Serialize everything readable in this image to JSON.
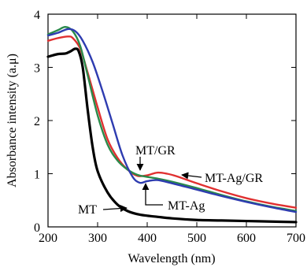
{
  "chart_data": {
    "type": "line",
    "xlabel": "Wavelength (nm)",
    "ylabel": "Absorbance intensity (a.μ)",
    "xlim": [
      200,
      700
    ],
    "ylim": [
      0,
      4
    ],
    "xticks": [
      200,
      300,
      400,
      500,
      600,
      700
    ],
    "yticks": [
      0,
      1,
      2,
      3,
      4
    ],
    "grid": false,
    "legend": "none (curves labelled by arrows)",
    "series": [
      {
        "name": "MT",
        "color": "#000000",
        "x": [
          200,
          220,
          235,
          245,
          255,
          262,
          270,
          280,
          290,
          300,
          320,
          340,
          360,
          380,
          400,
          420,
          450,
          500,
          550,
          600,
          650,
          700
        ],
        "y": [
          3.2,
          3.25,
          3.26,
          3.3,
          3.35,
          3.3,
          3.0,
          2.2,
          1.5,
          1.05,
          0.65,
          0.42,
          0.3,
          0.24,
          0.21,
          0.19,
          0.16,
          0.13,
          0.12,
          0.11,
          0.1,
          0.09
        ]
      },
      {
        "name": "MT-Ag",
        "color": "#2e3cb0",
        "x": [
          200,
          220,
          240,
          255,
          270,
          290,
          310,
          330,
          350,
          370,
          385,
          400,
          420,
          450,
          500,
          550,
          600,
          650,
          700
        ],
        "y": [
          3.6,
          3.65,
          3.72,
          3.68,
          3.5,
          3.1,
          2.55,
          1.95,
          1.35,
          0.95,
          0.83,
          0.86,
          0.88,
          0.82,
          0.7,
          0.58,
          0.47,
          0.37,
          0.28
        ]
      },
      {
        "name": "MT/GR",
        "color": "#2a8a4a",
        "x": [
          200,
          220,
          235,
          250,
          265,
          280,
          300,
          320,
          340,
          360,
          380,
          400,
          420,
          450,
          500,
          550,
          600,
          650,
          700
        ],
        "y": [
          3.62,
          3.7,
          3.76,
          3.68,
          3.4,
          2.85,
          2.1,
          1.55,
          1.25,
          1.08,
          0.98,
          0.94,
          0.91,
          0.85,
          0.73,
          0.6,
          0.48,
          0.38,
          0.3
        ]
      },
      {
        "name": "MT-Ag/GR",
        "color": "#e03030",
        "x": [
          200,
          220,
          240,
          250,
          265,
          280,
          300,
          320,
          340,
          360,
          380,
          400,
          420,
          440,
          460,
          500,
          550,
          600,
          650,
          700
        ],
        "y": [
          3.5,
          3.55,
          3.58,
          3.55,
          3.35,
          2.9,
          2.25,
          1.65,
          1.3,
          1.08,
          0.96,
          0.97,
          1.02,
          1.0,
          0.95,
          0.82,
          0.67,
          0.54,
          0.44,
          0.36
        ]
      }
    ],
    "annotations": [
      {
        "text": "MT/GR",
        "series": "MT/GR"
      },
      {
        "text": "MT-Ag/GR",
        "series": "MT-Ag/GR"
      },
      {
        "text": "MT-Ag",
        "series": "MT-Ag"
      },
      {
        "text": "MT",
        "series": "MT"
      }
    ]
  }
}
